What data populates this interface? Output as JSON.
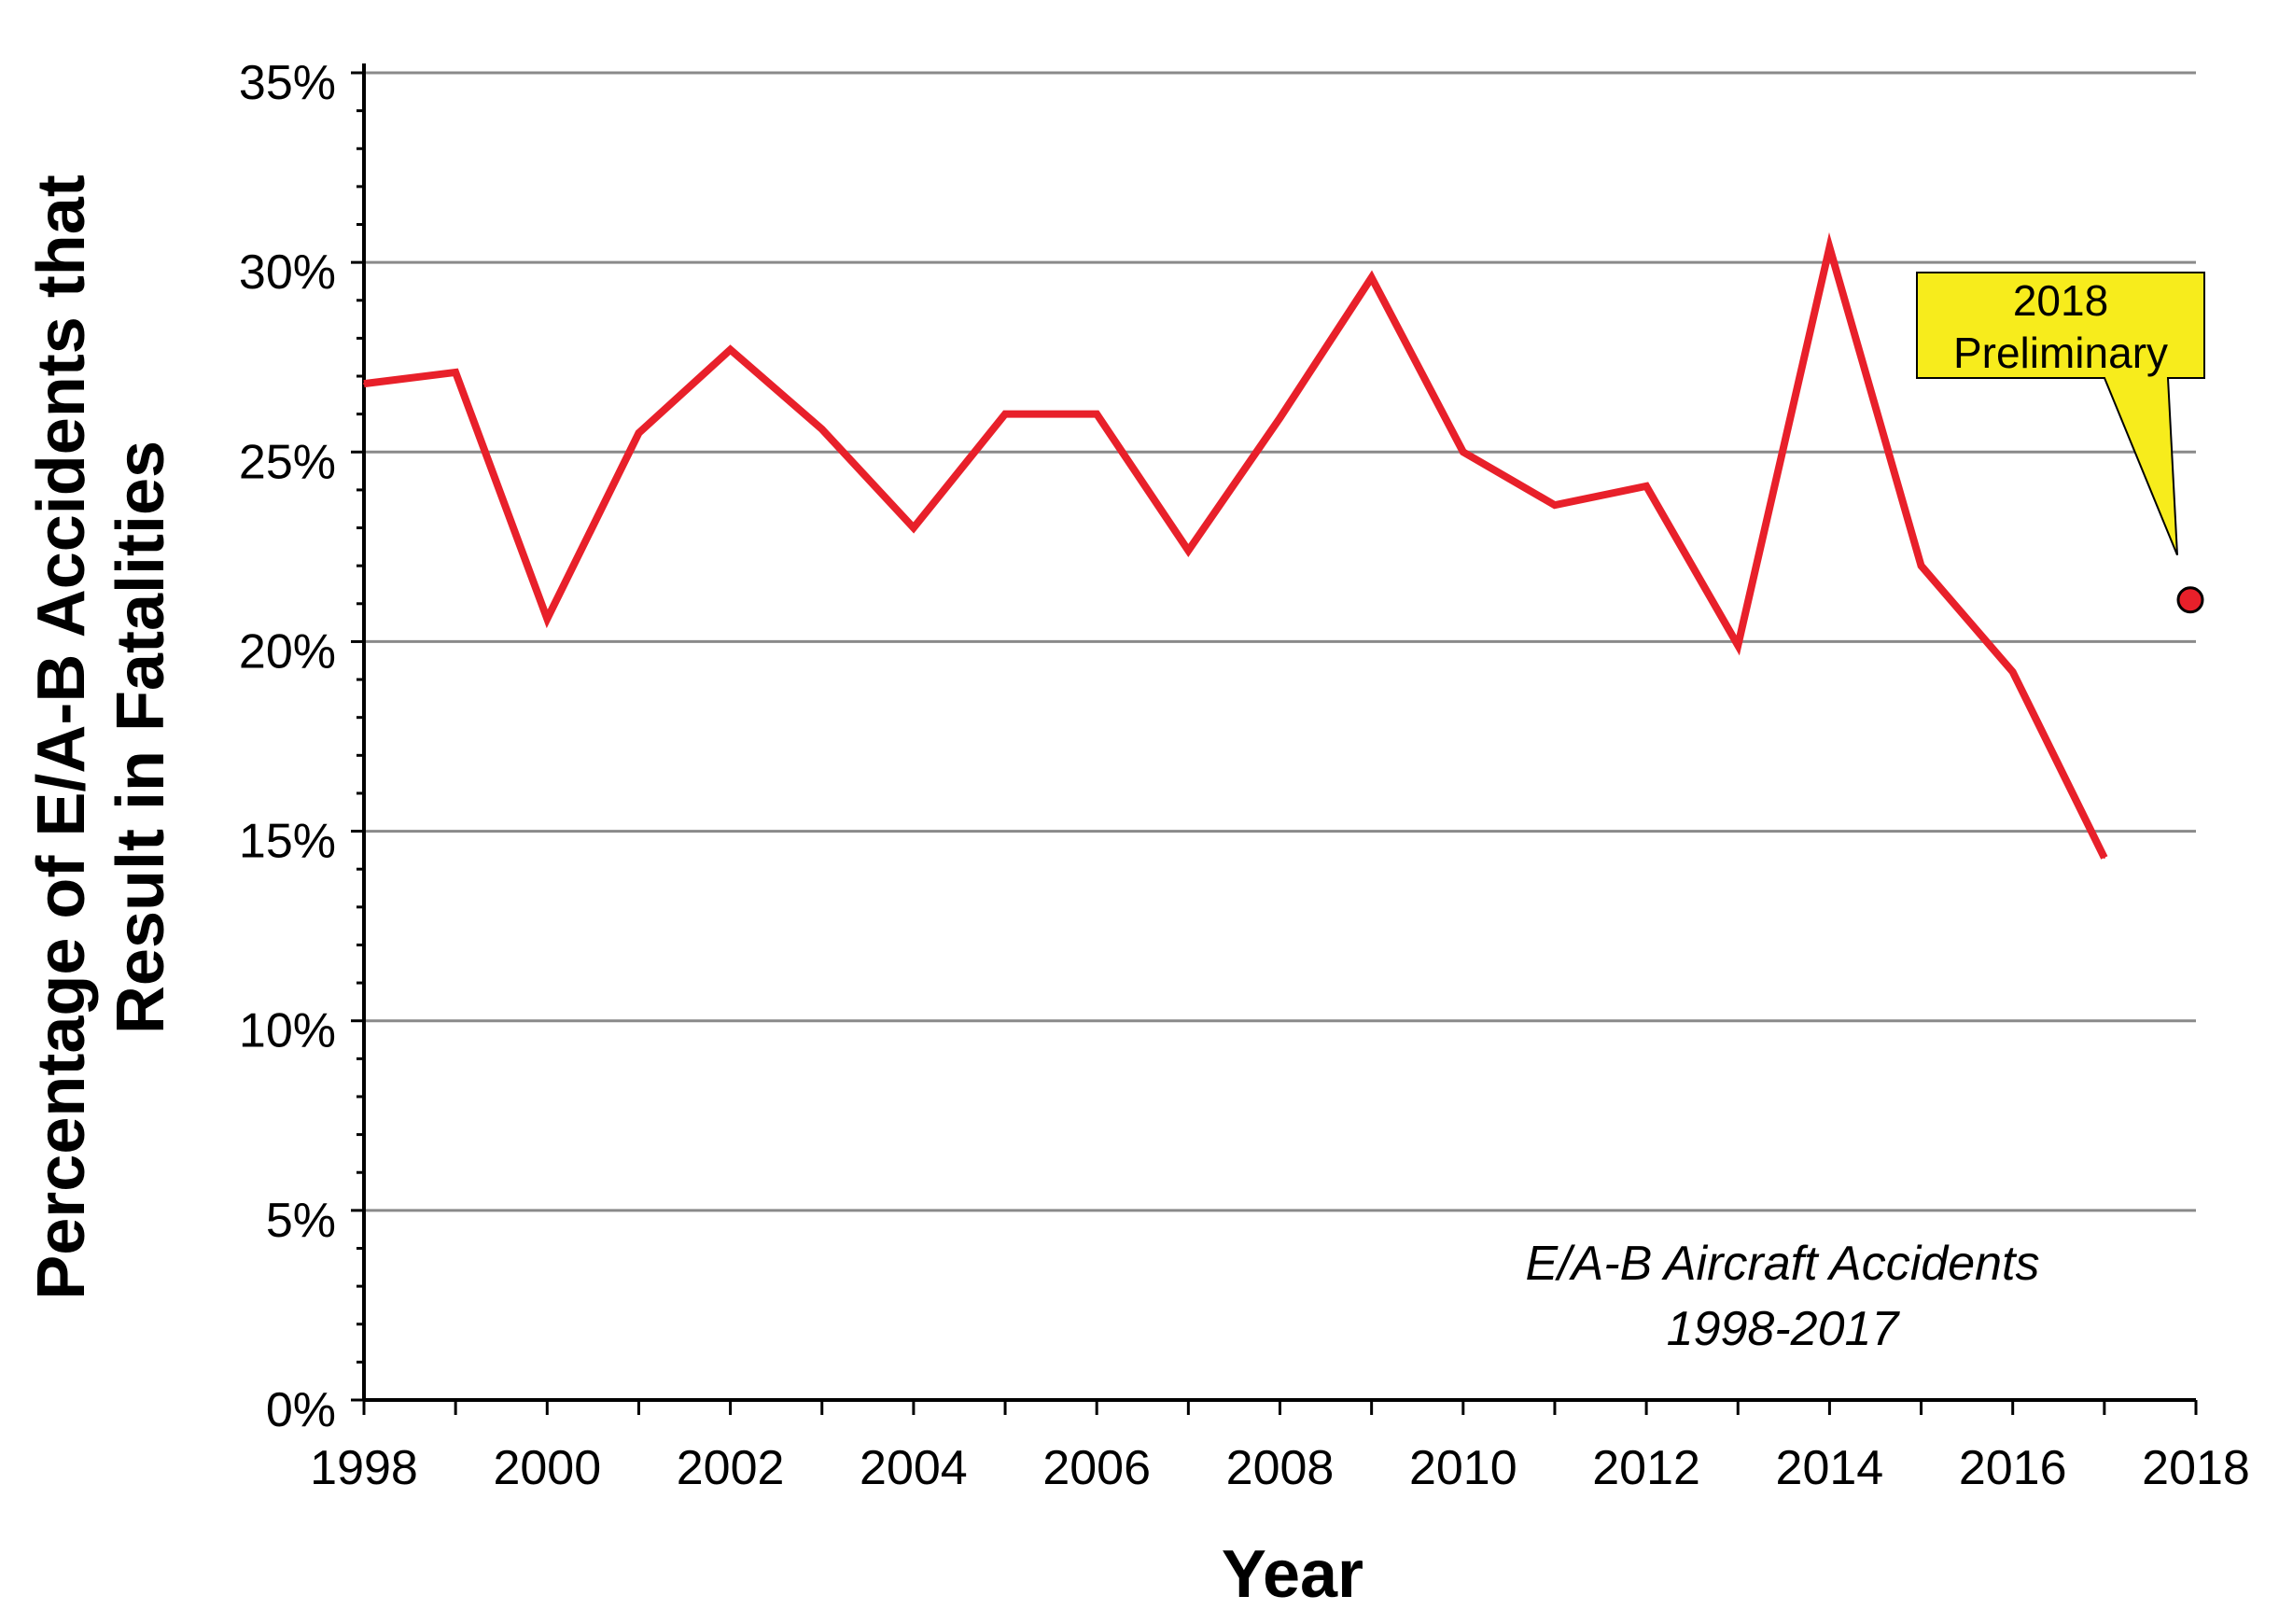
{
  "chart_data": {
    "type": "line",
    "title": "",
    "xlabel": "Year",
    "ylabel": [
      "Percentage of E/A-B Accidents that",
      "Result in Fatalities"
    ],
    "xlim": [
      1998,
      2018
    ],
    "ylim": [
      0,
      35
    ],
    "x_ticks": [
      "1998",
      "2000",
      "2002",
      "2004",
      "2006",
      "2008",
      "2010",
      "2012",
      "2014",
      "2016",
      "2018"
    ],
    "y_ticks": [
      "0%",
      "5%",
      "10%",
      "15%",
      "20%",
      "25%",
      "30%",
      "35%"
    ],
    "grid": true,
    "series": [
      {
        "x": [
          1998,
          1999,
          2000,
          2001,
          2002,
          2003,
          2004,
          2005,
          2006,
          2007,
          2008,
          2009,
          2010,
          2011,
          2012,
          2013,
          2014,
          2015,
          2016,
          2017
        ],
        "values": [
          26.8,
          27.1,
          20.6,
          25.5,
          27.7,
          25.6,
          23.0,
          26.0,
          26.0,
          22.4,
          25.9,
          29.6,
          25.0,
          23.6,
          24.1,
          19.9,
          30.4,
          22.0,
          19.2,
          14.3
        ],
        "color": "#e8202a"
      }
    ],
    "preliminary_point": {
      "x": 2018,
      "value": 21.1,
      "color": "#e8202a"
    },
    "callout": {
      "lines": [
        "2018",
        "Preliminary"
      ],
      "fill": "#f7ec1c"
    },
    "annotation": [
      "E/A-B Aircraft Accidents",
      "1998-2017"
    ]
  }
}
